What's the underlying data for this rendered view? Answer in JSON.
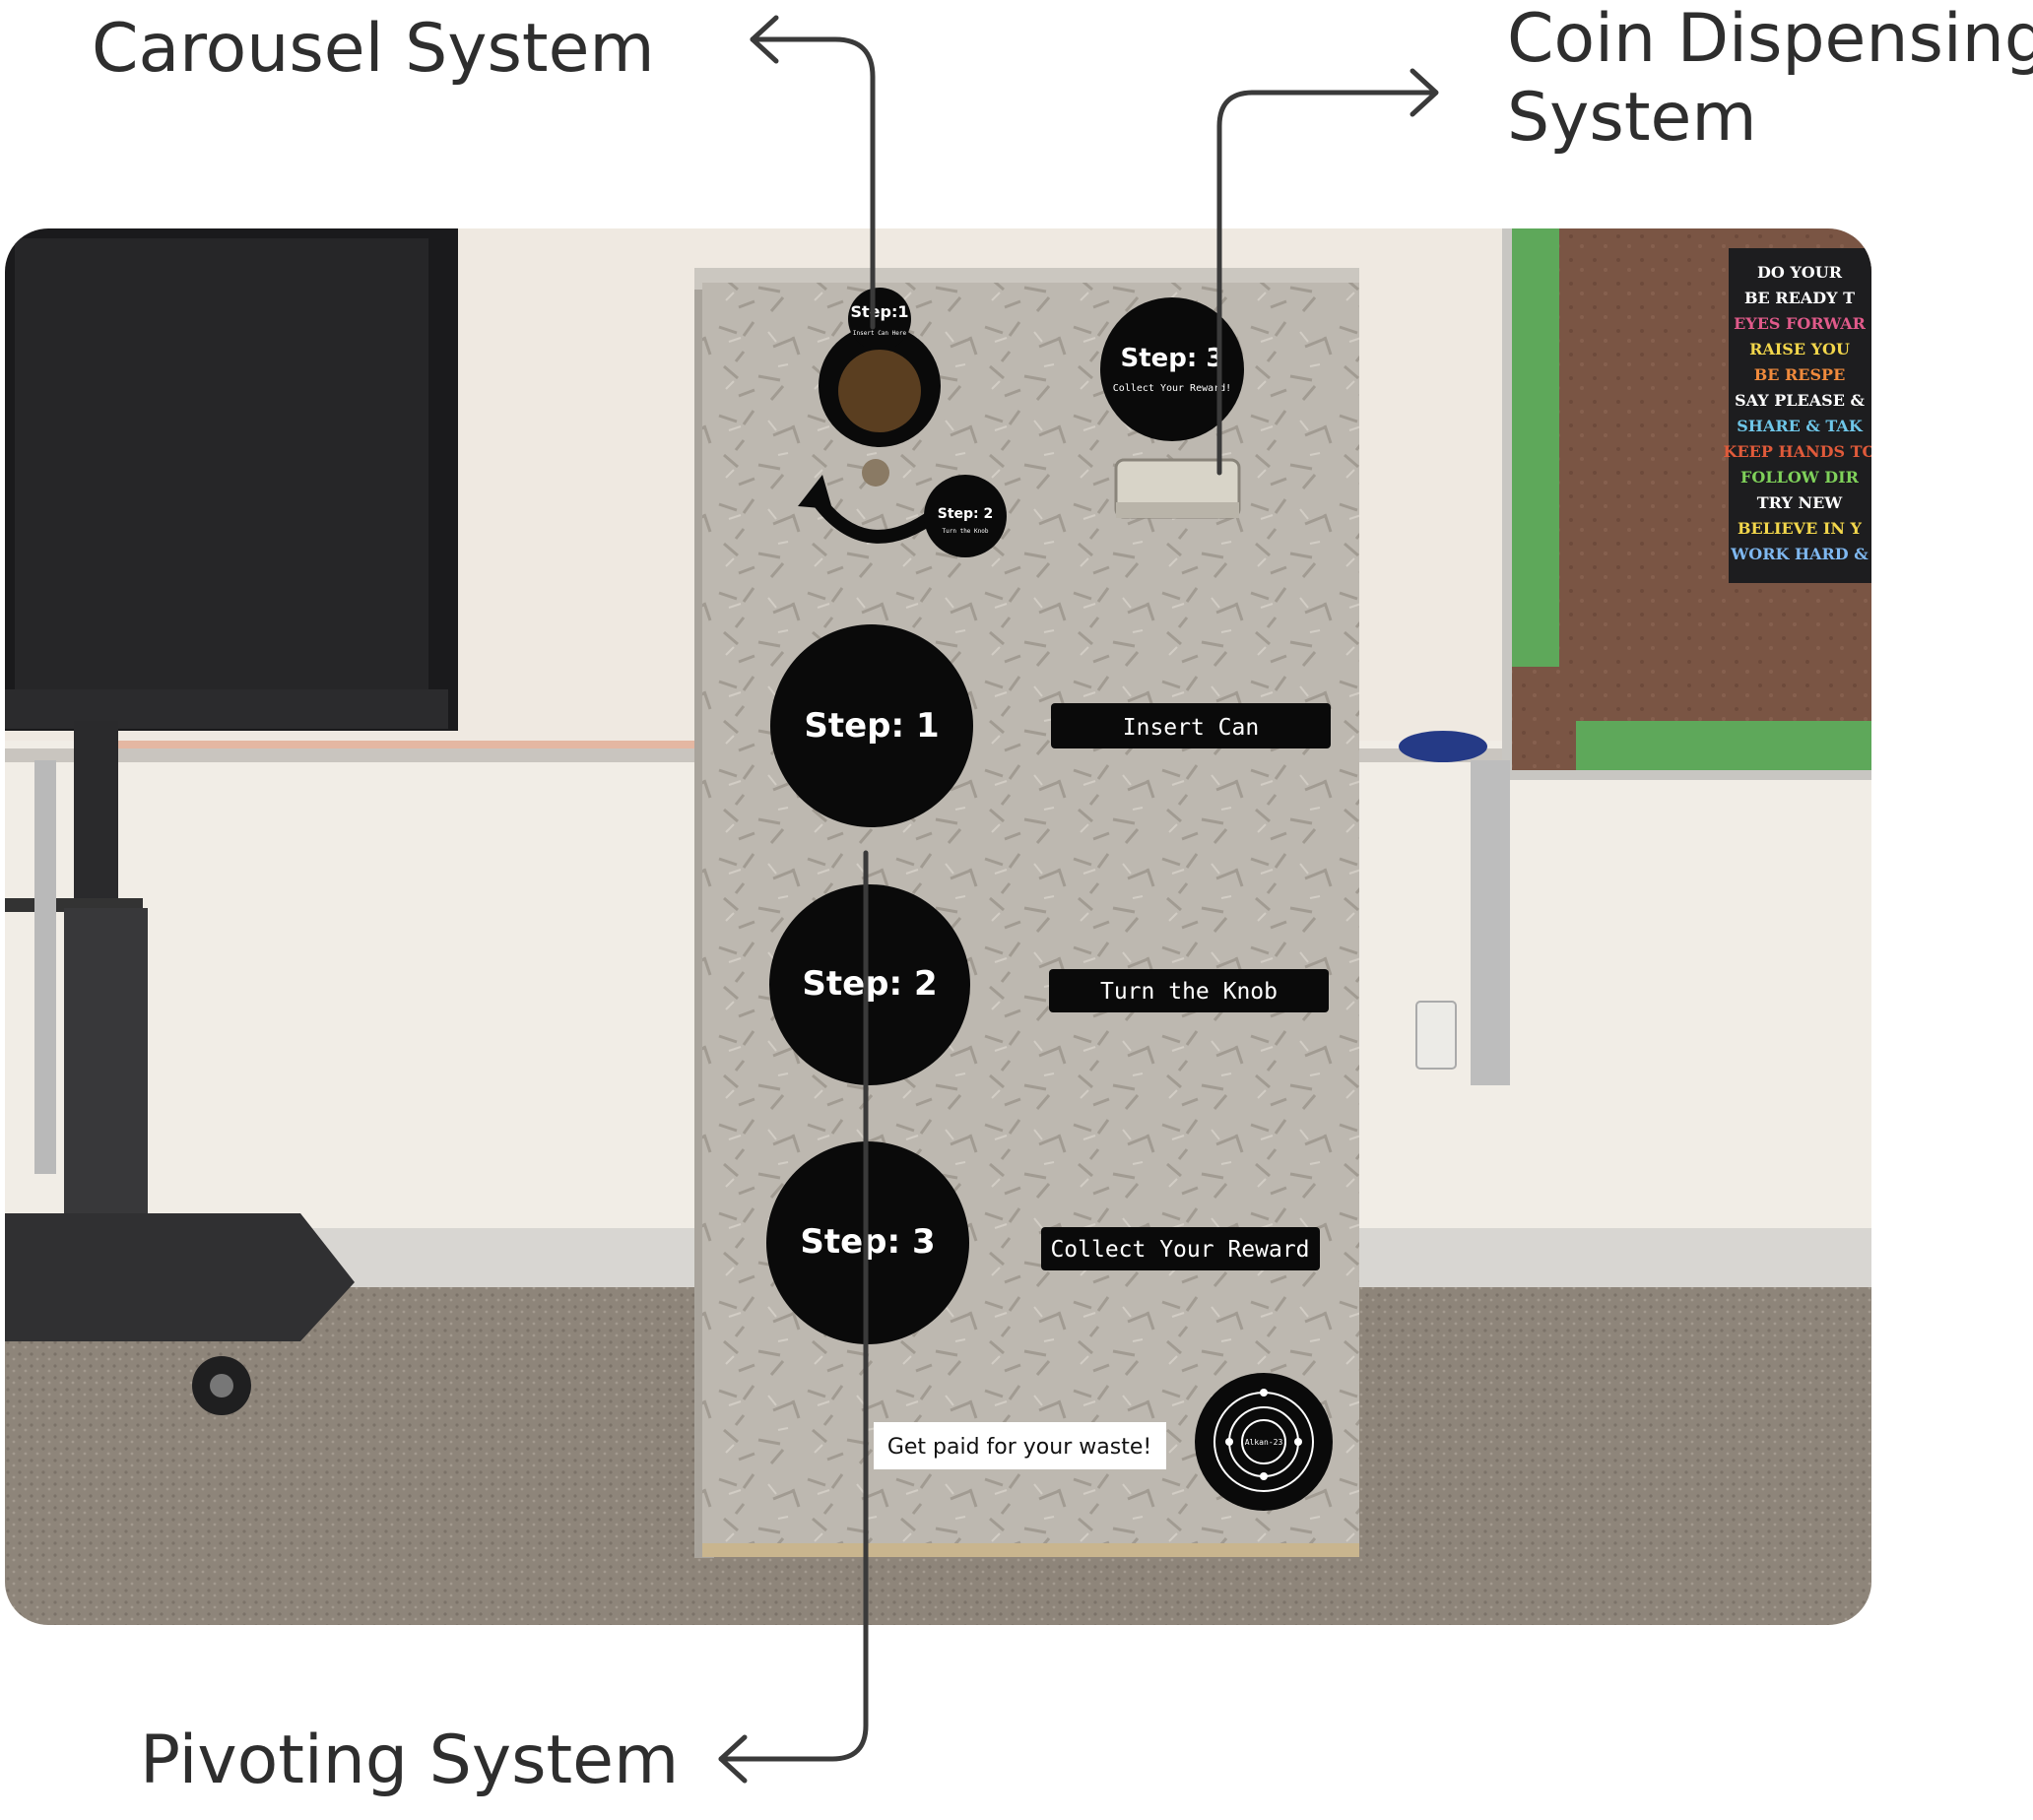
{
  "callouts": {
    "carousel": "Carousel System",
    "coin_line1": "Coin Dispensing",
    "coin_line2": "System",
    "pivoting": "Pivoting System"
  },
  "machine": {
    "hole_sticker": {
      "step": "Step:1",
      "sub": "Insert Can Here"
    },
    "knob_sticker": {
      "step": "Step: 2",
      "sub": "Turn the Knob"
    },
    "reward_sticker": {
      "step": "Step: 3",
      "sub": "Collect Your Reward!"
    },
    "steps": [
      {
        "circle": "Step: 1",
        "label": "Insert Can"
      },
      {
        "circle": "Step: 2",
        "label": "Turn the Knob"
      },
      {
        "circle": "Step: 3",
        "label": "Collect Your Reward"
      }
    ],
    "tagline": "Get paid for your waste!",
    "logo_text": "Alkan-23"
  },
  "poster": {
    "lines": [
      "DO YOUR",
      "BE READY T",
      "EYES FORWAR",
      "RAISE YOU",
      "BE RESPE",
      "SAY PLEASE &",
      "SHARE & TAK",
      "KEEP HANDS TO",
      "FOLLOW DIR",
      "TRY NEW",
      "BELIEVE IN Y",
      "WORK HARD &"
    ],
    "colors": [
      "#ffffff",
      "#ffffff",
      "#e05a8a",
      "#f2d64b",
      "#f08a3c",
      "#ffffff",
      "#6ec6e8",
      "#e05a3a",
      "#7fd15a",
      "#ffffff",
      "#f2d64b",
      "#7fb8f0"
    ]
  },
  "colors": {
    "callout_text": "#2e2e2e",
    "connector": "#3a3a3a",
    "sticker": "#0a0a0a",
    "particle_board": "#bdb8b0",
    "wall": "#f1ede6",
    "carpet": "#8e857a",
    "cork_board": "#7a5544"
  }
}
